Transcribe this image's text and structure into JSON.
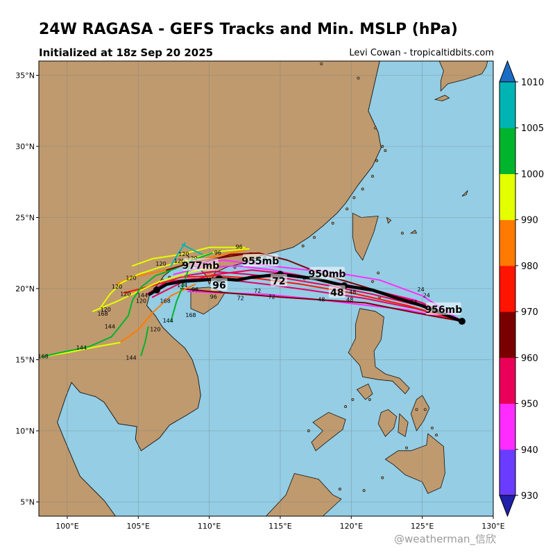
{
  "header": {
    "title": "24W RAGASA - GEFS Tracks and Min. MSLP (hPa)",
    "subtitle": "Initialized at 18z Sep 20 2025",
    "credit": "Levi Cowan - tropicaltidbits.com"
  },
  "watermark": "@weatherman_信欣",
  "map": {
    "lon_range": [
      98,
      130
    ],
    "lat_range": [
      4,
      36
    ],
    "lon_ticks": [
      {
        "value": 100,
        "label": "100°E"
      },
      {
        "value": 105,
        "label": "105°E"
      },
      {
        "value": 110,
        "label": "110°E"
      },
      {
        "value": 115,
        "label": "115°E"
      },
      {
        "value": 120,
        "label": "120°E"
      },
      {
        "value": 125,
        "label": "125°E"
      },
      {
        "value": 130,
        "label": "130°E"
      }
    ],
    "lat_ticks": [
      {
        "value": 5,
        "label": "5°N"
      },
      {
        "value": 10,
        "label": "10°N"
      },
      {
        "value": 15,
        "label": "15°N"
      },
      {
        "value": 20,
        "label": "20°N"
      },
      {
        "value": 25,
        "label": "25°N"
      },
      {
        "value": 30,
        "label": "30°N"
      },
      {
        "value": 35,
        "label": "35°N"
      }
    ],
    "colors": {
      "ocean": "#94cde4",
      "land": "#bf9a6e",
      "coast": "#111111",
      "grid": "#6f7f86"
    }
  },
  "colorbar": {
    "levels": [
      930,
      940,
      950,
      960,
      970,
      980,
      990,
      1000,
      1005,
      1010
    ],
    "labels": [
      "930",
      "940",
      "950",
      "960",
      "970",
      "980",
      "990",
      "1000",
      "1005",
      "1010"
    ],
    "colors": [
      "#2020a8",
      "#6a3cff",
      "#ff2cff",
      "#ea0059",
      "#7a0000",
      "#ff1400",
      "#ff7a00",
      "#e4ff00",
      "#00b42c",
      "#00b4b4",
      "#1c6cc4"
    ]
  },
  "mean_track": {
    "points": [
      [
        127.8,
        17.7
      ],
      [
        126.5,
        18.2
      ],
      [
        125,
        18.8
      ],
      [
        123,
        19.4
      ],
      [
        121.5,
        19.9
      ],
      [
        119.5,
        20.2
      ],
      [
        117.5,
        20.7
      ],
      [
        115,
        21.0
      ],
      [
        113,
        20.8
      ],
      [
        112,
        20.6
      ],
      [
        110.7,
        20.7
      ],
      [
        109.5,
        20.6
      ],
      [
        108,
        20.5
      ],
      [
        107,
        20.3
      ],
      [
        106.3,
        19.9
      ],
      [
        105.8,
        19.6
      ]
    ],
    "dots": [
      [
        127.8,
        17.7
      ],
      [
        119.5,
        20.2
      ],
      [
        115,
        21.0
      ],
      [
        110.7,
        20.7
      ],
      [
        106.3,
        19.9
      ]
    ]
  },
  "pressure_labels": [
    {
      "text": "956mb",
      "lon": 126.5,
      "lat": 18.3
    },
    {
      "text": "950mb",
      "lon": 118.3,
      "lat": 20.8
    },
    {
      "text": "955mb",
      "lon": 113.6,
      "lat": 21.7
    },
    {
      "text": "977mb",
      "lon": 109.4,
      "lat": 21.4
    }
  ],
  "hour_labels": [
    {
      "text": "48",
      "lon": 119.0,
      "lat": 19.5
    },
    {
      "text": "72",
      "lon": 114.9,
      "lat": 20.3
    },
    {
      "text": "96",
      "lon": 110.7,
      "lat": 20.0
    }
  ],
  "small_labels": [
    {
      "text": "96",
      "lon": 112.1,
      "lat": 22.8
    },
    {
      "text": "96",
      "lon": 110.6,
      "lat": 22.4
    },
    {
      "text": "120",
      "lon": 108.2,
      "lat": 22.3
    },
    {
      "text": "120",
      "lon": 107.9,
      "lat": 21.8
    },
    {
      "text": "120",
      "lon": 108.8,
      "lat": 22.0
    },
    {
      "text": "120",
      "lon": 106.6,
      "lat": 21.6
    },
    {
      "text": "120",
      "lon": 104.5,
      "lat": 20.6
    },
    {
      "text": "120",
      "lon": 103.5,
      "lat": 20.0
    },
    {
      "text": "120",
      "lon": 104.1,
      "lat": 19.5
    },
    {
      "text": "120",
      "lon": 105.2,
      "lat": 19.0
    },
    {
      "text": "120",
      "lon": 102.7,
      "lat": 18.4
    },
    {
      "text": "120",
      "lon": 106.2,
      "lat": 17.0
    },
    {
      "text": "144",
      "lon": 105.3,
      "lat": 19.4
    },
    {
      "text": "144",
      "lon": 108.1,
      "lat": 20.1
    },
    {
      "text": "144",
      "lon": 107.1,
      "lat": 17.6
    },
    {
      "text": "144",
      "lon": 103.0,
      "lat": 17.2
    },
    {
      "text": "144",
      "lon": 101.0,
      "lat": 15.7
    },
    {
      "text": "144",
      "lon": 104.5,
      "lat": 15.0
    },
    {
      "text": "168",
      "lon": 102.5,
      "lat": 18.1
    },
    {
      "text": "168",
      "lon": 106.9,
      "lat": 19.0
    },
    {
      "text": "168",
      "lon": 108.7,
      "lat": 18.0
    },
    {
      "text": "168",
      "lon": 98.3,
      "lat": 15.1
    },
    {
      "text": "96",
      "lon": 109.0,
      "lat": 19.8
    },
    {
      "text": "96",
      "lon": 110.3,
      "lat": 19.3
    },
    {
      "text": "72",
      "lon": 113.4,
      "lat": 19.7
    },
    {
      "text": "72",
      "lon": 112.2,
      "lat": 19.2
    },
    {
      "text": "72",
      "lon": 114.4,
      "lat": 19.3
    },
    {
      "text": "72",
      "lon": 114.8,
      "lat": 20.6
    },
    {
      "text": "48",
      "lon": 117.9,
      "lat": 19.1
    },
    {
      "text": "48",
      "lon": 120.1,
      "lat": 19.6
    },
    {
      "text": "48",
      "lon": 119.9,
      "lat": 19.1
    },
    {
      "text": "24",
      "lon": 124.9,
      "lat": 19.8
    },
    {
      "text": "24",
      "lon": 124.4,
      "lat": 18.9
    },
    {
      "text": "24",
      "lon": 125.3,
      "lat": 19.4
    }
  ],
  "tracks": [
    {
      "color": "#e0006a",
      "pts": [
        [
          127.8,
          17.7
        ],
        [
          124.5,
          18.6
        ],
        [
          121,
          19.3
        ],
        [
          117,
          19.9
        ],
        [
          114,
          20.3
        ],
        [
          111.5,
          20.6
        ],
        [
          109,
          20.7
        ],
        [
          107,
          20.5
        ],
        [
          105.6,
          19.6
        ]
      ]
    },
    {
      "color": "#ff2cff",
      "pts": [
        [
          127.8,
          17.7
        ],
        [
          124.5,
          19.2
        ],
        [
          121,
          20.0
        ],
        [
          117.5,
          20.7
        ],
        [
          114.5,
          21.3
        ],
        [
          112,
          21.6
        ],
        [
          109.5,
          21.5
        ],
        [
          107.5,
          21.0
        ]
      ]
    },
    {
      "color": "#ff2cff",
      "pts": [
        [
          127.8,
          17.7
        ],
        [
          124,
          18.5
        ],
        [
          120.5,
          18.9
        ],
        [
          117,
          19.3
        ],
        [
          114,
          19.6
        ],
        [
          111,
          19.7
        ],
        [
          108.5,
          19.8
        ]
      ]
    },
    {
      "color": "#7a0000",
      "pts": [
        [
          127.8,
          17.7
        ],
        [
          124.5,
          18.3
        ],
        [
          121,
          19.0
        ],
        [
          118,
          19.2
        ],
        [
          115,
          19.4
        ],
        [
          112.5,
          19.6
        ],
        [
          110,
          19.8
        ],
        [
          108,
          20.0
        ]
      ]
    },
    {
      "color": "#7a0000",
      "pts": [
        [
          127.8,
          17.7
        ],
        [
          124.5,
          19.0
        ],
        [
          121,
          20.1
        ],
        [
          118,
          21.0
        ],
        [
          115.5,
          22.0
        ],
        [
          113.5,
          22.5
        ],
        [
          111.5,
          22.4
        ],
        [
          109.5,
          21.8
        ]
      ]
    },
    {
      "color": "#ea0059",
      "pts": [
        [
          127.8,
          17.7
        ],
        [
          125,
          19.0
        ],
        [
          122,
          19.8
        ],
        [
          119,
          20.4
        ],
        [
          116,
          21.0
        ],
        [
          113,
          21.3
        ],
        [
          110.5,
          21.0
        ],
        [
          108,
          20.4
        ],
        [
          106,
          19.4
        ]
      ]
    },
    {
      "color": "#ea0059",
      "pts": [
        [
          127.8,
          17.7
        ],
        [
          124.8,
          18.8
        ],
        [
          121.5,
          19.6
        ],
        [
          118.5,
          20.2
        ],
        [
          115.5,
          20.7
        ],
        [
          112.8,
          21.0
        ],
        [
          110.3,
          21.2
        ],
        [
          108.3,
          20.9
        ]
      ]
    },
    {
      "color": "#ff2cff",
      "pts": [
        [
          127.8,
          17.7
        ],
        [
          125,
          19.5
        ],
        [
          122,
          20.6
        ],
        [
          119,
          21.1
        ],
        [
          116,
          21.4
        ],
        [
          113.5,
          21.7
        ],
        [
          111,
          22.0
        ],
        [
          108.5,
          21.6
        ]
      ]
    },
    {
      "color": "#ff1400",
      "pts": [
        [
          127.8,
          17.7
        ],
        [
          124,
          18.8
        ],
        [
          120,
          19.7
        ],
        [
          116.5,
          20.3
        ],
        [
          113.5,
          20.7
        ],
        [
          110.5,
          20.9
        ],
        [
          108,
          20.8
        ],
        [
          106,
          20.2
        ],
        [
          104,
          19.7
        ]
      ]
    },
    {
      "color": "#ff7a00",
      "pts": [
        [
          112.5,
          22.7
        ],
        [
          110.5,
          22.3
        ],
        [
          108.5,
          21.7
        ],
        [
          106.5,
          21.2
        ],
        [
          104.5,
          20.8
        ],
        [
          103.5,
          20.3
        ]
      ]
    },
    {
      "color": "#ff7a00",
      "pts": [
        [
          109,
          20.3
        ],
        [
          107.3,
          19.5
        ],
        [
          106,
          18.3
        ],
        [
          105,
          17.1
        ],
        [
          103.7,
          16.2
        ]
      ]
    },
    {
      "color": "#e4ff00",
      "pts": [
        [
          112.8,
          22.8
        ],
        [
          110.5,
          22.6
        ],
        [
          108.5,
          22.0
        ],
        [
          106.5,
          21.5
        ],
        [
          105,
          21.0
        ],
        [
          103.8,
          20.4
        ],
        [
          103,
          19.6
        ],
        [
          102.3,
          18.6
        ]
      ]
    },
    {
      "color": "#e4ff00",
      "pts": [
        [
          110.5,
          21.6
        ],
        [
          108.5,
          21.1
        ],
        [
          106.5,
          20.5
        ],
        [
          105,
          19.8
        ],
        [
          103.5,
          19.1
        ],
        [
          101.8,
          18.4
        ]
      ]
    },
    {
      "color": "#e4ff00",
      "pts": [
        [
          112.5,
          22.9
        ],
        [
          110,
          22.9
        ],
        [
          108,
          22.4
        ],
        [
          106,
          22.1
        ],
        [
          104.6,
          21.6
        ]
      ]
    },
    {
      "color": "#e4ff00",
      "pts": [
        [
          103.7,
          16.2
        ],
        [
          102,
          15.9
        ],
        [
          100,
          15.5
        ],
        [
          98.2,
          15.2
        ]
      ]
    },
    {
      "color": "#00b42c",
      "pts": [
        [
          108.6,
          21.6
        ],
        [
          108.2,
          20.3
        ],
        [
          107.7,
          19.1
        ],
        [
          107.3,
          17.7
        ]
      ]
    },
    {
      "color": "#00b42c",
      "pts": [
        [
          110.2,
          22.5
        ],
        [
          108.8,
          22.0
        ],
        [
          107.6,
          21.4
        ]
      ]
    },
    {
      "color": "#00b42c",
      "pts": [
        [
          107.6,
          21.4
        ],
        [
          106.2,
          20.9
        ],
        [
          105.2,
          20.1
        ],
        [
          104.6,
          19.2
        ],
        [
          104.3,
          18.1
        ]
      ]
    },
    {
      "color": "#00b42c",
      "pts": [
        [
          104.3,
          18.1
        ],
        [
          103.6,
          17.2
        ],
        [
          103.1,
          16.6
        ],
        [
          101.5,
          15.9
        ],
        [
          99.5,
          15.5
        ],
        [
          98.2,
          15.2
        ]
      ]
    },
    {
      "color": "#00b42c",
      "pts": [
        [
          105.7,
          17.3
        ],
        [
          105.5,
          16.3
        ],
        [
          105.2,
          15.3
        ]
      ]
    },
    {
      "color": "#00b4b4",
      "pts": [
        [
          108.3,
          23.2
        ],
        [
          107.9,
          22.6
        ],
        [
          107.3,
          21.6
        ]
      ]
    },
    {
      "color": "#00b4b4",
      "pts": [
        [
          109.5,
          22.4
        ],
        [
          108.7,
          22.8
        ],
        [
          108.1,
          23.1
        ]
      ]
    },
    {
      "color": "#7a0000",
      "pts": [
        [
          113,
          22.5
        ],
        [
          111,
          22.2
        ],
        [
          109,
          21.9
        ],
        [
          107,
          21.3
        ]
      ]
    }
  ],
  "land": [
    "98,4 98,36 122,36 121.2,32.5 121.9,31.0 122.1,29.9 121.5,28.6 120.5,27.3 119.6,26.0 119.0,25.3 118.0,24.4 117.0,23.6 115.9,22.9 114.4,22.5 113.6,22.3 112.8,21.9 111.2,21.5 110.4,21.1 110.0,20.3 109.8,20.9 109.2,21.5 108.4,21.7 107.6,21.5 106.8,20.9 106.4,20.3 105.8,19.6 105.6,18.8 106.2,18.1 106.7,17.3 107.4,16.6 108.3,15.8 108.8,15.0 109.2,13.8 109.4,12.5 109.2,11.6 108.4,11.1 107.2,10.4 106.5,9.5 105.2,8.6 104.8,9.4 104.9,10.3 103.6,10.5 102.6,12.0 102.0,12.4 100.9,12.7 100.3,13.4 99.9,12.4 99.3,10.6 99.8,9.4 100.3,8.2 100.9,6.8 101.7,6.0 102.6,5.1 103.4,4.0"
  ],
  "islands": [
    "120.1,25.3 120.7,25.0 121.9,25.1 121.6,24.0 121.2,23.0 120.8,22.0 120.3,22.7 120.1,23.6 120.1,24.6",
    "108.7,20.0 110.0,20.1 111.1,19.7 110.6,18.9 109.6,18.2 108.7,18.6",
    "120.6,18.6 121.7,18.4 122.3,18.0 122.1,16.4 121.6,15.6 121.7,14.5 122.4,14.0 123.4,13.7 124.1,13.0 123.8,12.6 122.9,13.5 121.9,13.6 120.8,13.8 120.6,14.6 119.8,15.5 120.3,16.5 120.3,17.5",
    "125.0,12.5 125.5,11.6 125.1,10.7 124.6,10.0 124.2,11.2 124.6,12.2",
    "122.6,11.5 123.2,11.0 123.0,10.2 122.4,9.6 121.9,10.5 122.1,11.3",
    "123.4,11.2 124.0,10.6 123.8,9.6 123.3,9.9",
    "121.2,13.3 121.5,12.6 121.0,12.2 120.4,12.9",
    "117.3,10.6 118.4,11.3 119.6,10.8 119.4,10.1 118.5,9.4 117.5,8.6 117.2,9.2 118.0,10.0",
    "125.4,9.8 126.5,8.9 126.6,7.0 126.3,6.0 125.4,5.6 125.0,6.4 123.8,6.9 123.0,7.6 122.4,8.0 123.3,8.6 124.2,8.6 125.3,9.0",
    "116.0,7.0 117.7,6.6 118.7,5.5 119.3,5.2 118.0,4.0 114.0,4.0 115.4,5.5",
    "122.5,25.0 122.8,24.8 122.6,24.6",
    "127.8,26.5 128.2,26.9 128.1,26.6",
    "130.0,31.4 130.0,32.5 130.0,33.6 130.5,33.9",
    "125.9,33.3 126.6,33.6 126.9,33.4 126.4,33.2",
    "124.2,23.9 124.5,24.1 124.6,23.9",
    "126.3,33.9 126.8,34.4 128.0,34.7 129.2,35.1 129.5,35.6 129.6,36 126.2,36 126.5,35.3 126.3,34.6"
  ],
  "fine_islands": [
    [
      117.9,
      35.8
    ],
    [
      120.5,
      34.8
    ],
    [
      121.7,
      31.3
    ],
    [
      122.2,
      30.0
    ],
    [
      122.4,
      29.7
    ],
    [
      121.8,
      29.0
    ],
    [
      121.5,
      27.9
    ],
    [
      120.8,
      27.0
    ],
    [
      120.2,
      26.4
    ],
    [
      119.7,
      25.6
    ],
    [
      118.7,
      24.6
    ],
    [
      117.4,
      23.6
    ],
    [
      116.6,
      23.0
    ],
    [
      113.9,
      22.2
    ],
    [
      113.2,
      21.9
    ],
    [
      111.8,
      21.5
    ],
    [
      110.5,
      21.3
    ],
    [
      107.2,
      20.8
    ],
    [
      106.7,
      20.6
    ],
    [
      119.2,
      5.9
    ],
    [
      120.9,
      5.8
    ],
    [
      122.2,
      6.7
    ],
    [
      121.3,
      12.2
    ],
    [
      124.6,
      11.5
    ],
    [
      123.9,
      8.8
    ],
    [
      125.7,
      10.2
    ],
    [
      121.5,
      20.5
    ],
    [
      121.9,
      21.1
    ],
    [
      122.0,
      19.4
    ],
    [
      123.6,
      23.9
    ],
    [
      116.7,
      20.7
    ],
    [
      117.0,
      10.0
    ],
    [
      125.2,
      11.5
    ],
    [
      119.6,
      11.7
    ],
    [
      120.1,
      12.2
    ],
    [
      126.0,
      9.7
    ]
  ]
}
